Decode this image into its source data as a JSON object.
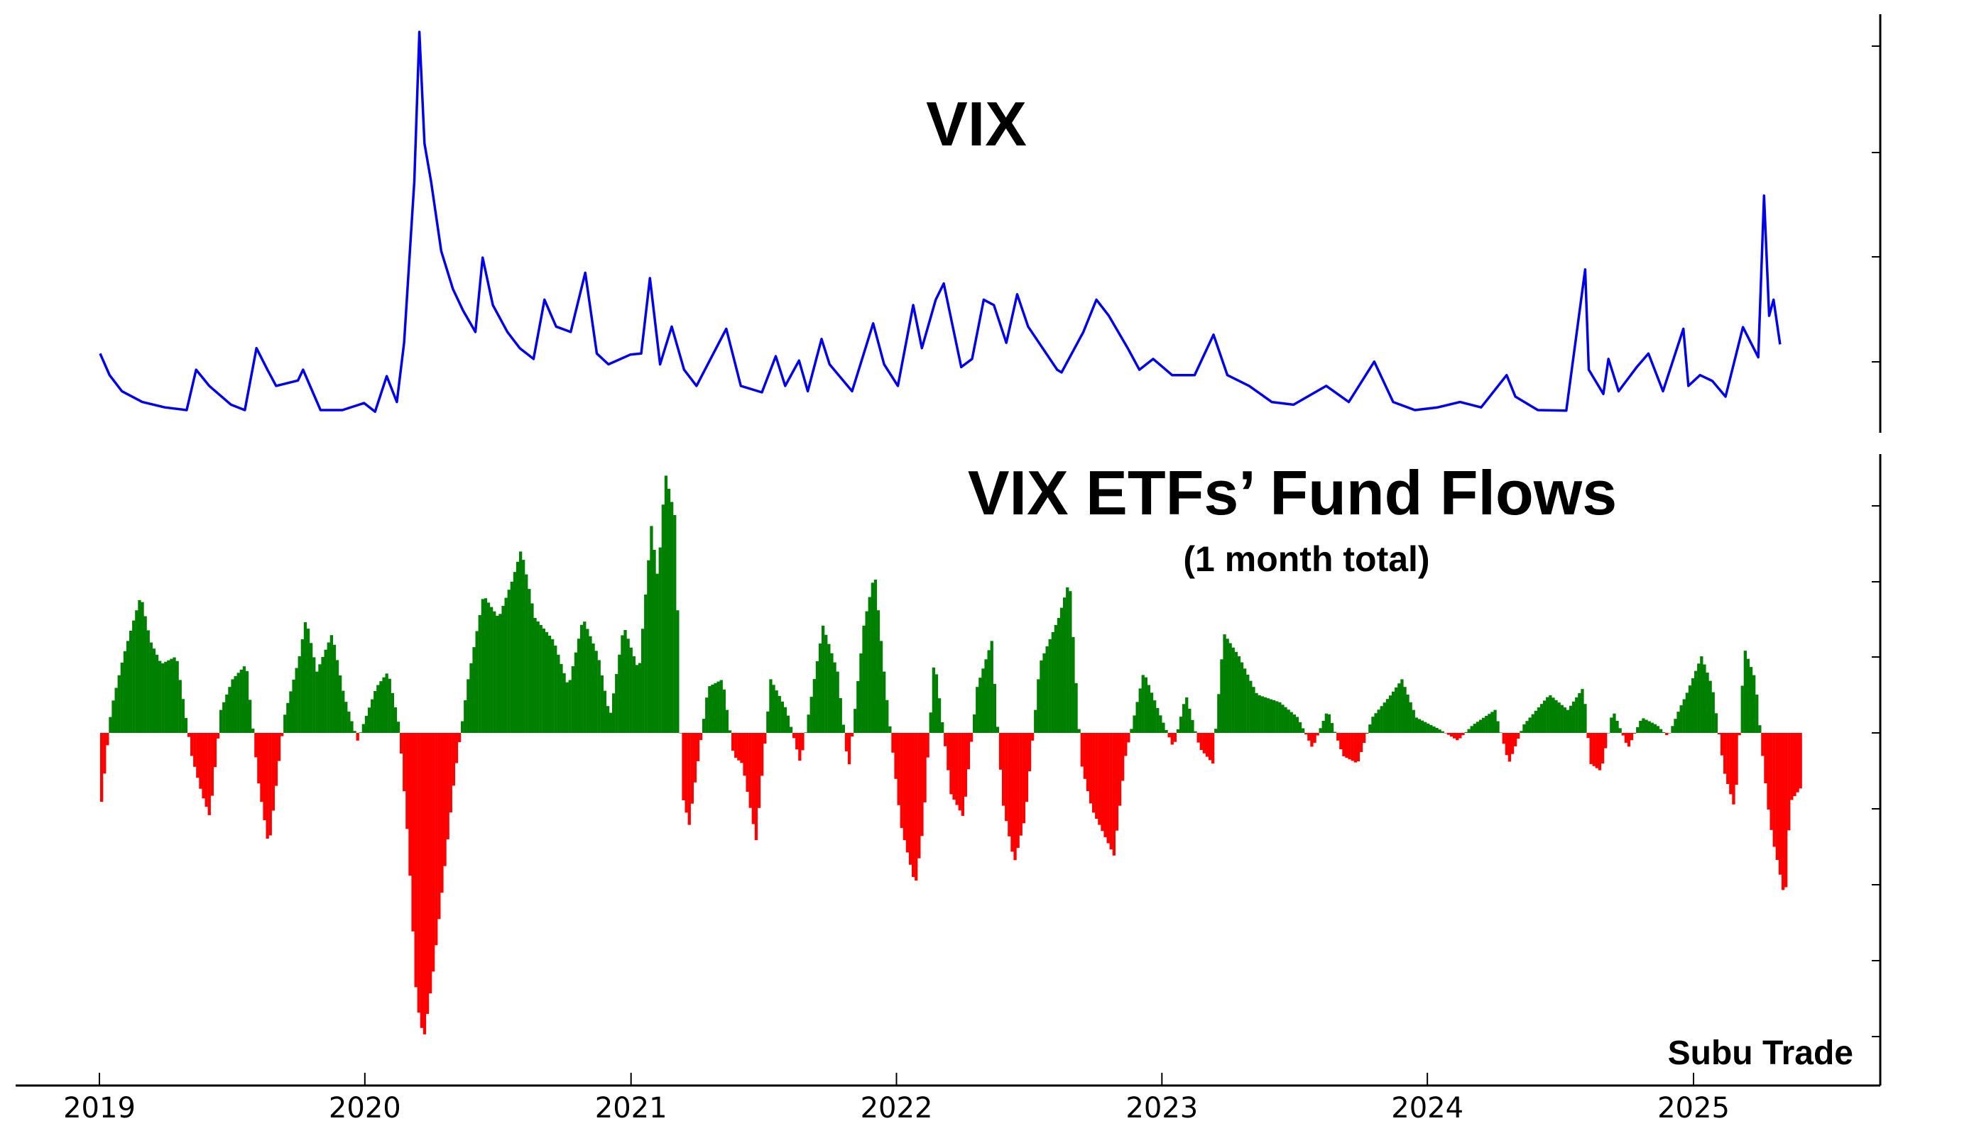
{
  "chart_data": [
    {
      "type": "line",
      "title": "VIX",
      "xlabel": "",
      "ylabel": "",
      "x_ticks": [
        "2019",
        "2020",
        "2021",
        "2022",
        "2023",
        "2024",
        "2025"
      ],
      "x_range": [
        "2019-01-01",
        "2025-05-31"
      ],
      "y_tick_labels_shown": false,
      "color": "#0000ee",
      "series": [
        {
          "points": [
            [
              "2019-01-02",
              23
            ],
            [
              "2019-01-15",
              19
            ],
            [
              "2019-02-01",
              16
            ],
            [
              "2019-03-01",
              14
            ],
            [
              "2019-04-01",
              13
            ],
            [
              "2019-05-01",
              12.5
            ],
            [
              "2019-05-14",
              20
            ],
            [
              "2019-06-01",
              17
            ],
            [
              "2019-07-01",
              13.5
            ],
            [
              "2019-07-20",
              12.5
            ],
            [
              "2019-08-05",
              24
            ],
            [
              "2019-08-20",
              20
            ],
            [
              "2019-09-01",
              17
            ],
            [
              "2019-10-01",
              18
            ],
            [
              "2019-10-08",
              20
            ],
            [
              "2019-11-01",
              12.5
            ],
            [
              "2019-12-01",
              12.5
            ],
            [
              "2019-12-31",
              13.8
            ],
            [
              "2020-01-15",
              12.2
            ],
            [
              "2020-01-31",
              18.8
            ],
            [
              "2020-02-14",
              14
            ],
            [
              "2020-02-24",
              25
            ],
            [
              "2020-03-02",
              40
            ],
            [
              "2020-03-09",
              55
            ],
            [
              "2020-03-16",
              82.7
            ],
            [
              "2020-03-23",
              62
            ],
            [
              "2020-04-01",
              55
            ],
            [
              "2020-04-15",
              42
            ],
            [
              "2020-05-01",
              35
            ],
            [
              "2020-05-15",
              31
            ],
            [
              "2020-06-01",
              27
            ],
            [
              "2020-06-11",
              40.8
            ],
            [
              "2020-06-25",
              32
            ],
            [
              "2020-07-15",
              27
            ],
            [
              "2020-08-01",
              24
            ],
            [
              "2020-08-20",
              22
            ],
            [
              "2020-09-04",
              33
            ],
            [
              "2020-09-20",
              28
            ],
            [
              "2020-10-10",
              27
            ],
            [
              "2020-10-30",
              38
            ],
            [
              "2020-11-15",
              23
            ],
            [
              "2020-12-01",
              21
            ],
            [
              "2020-12-31",
              22.8
            ],
            [
              "2021-01-15",
              23
            ],
            [
              "2021-01-27",
              37
            ],
            [
              "2021-02-10",
              21
            ],
            [
              "2021-02-26",
              28
            ],
            [
              "2021-03-15",
              20
            ],
            [
              "2021-04-01",
              17
            ],
            [
              "2021-05-12",
              27.6
            ],
            [
              "2021-06-01",
              17
            ],
            [
              "2021-06-30",
              15.8
            ],
            [
              "2021-07-19",
              22.5
            ],
            [
              "2021-08-01",
              17
            ],
            [
              "2021-08-20",
              21.7
            ],
            [
              "2021-09-01",
              16
            ],
            [
              "2021-09-20",
              25.7
            ],
            [
              "2021-10-01",
              21
            ],
            [
              "2021-11-01",
              16
            ],
            [
              "2021-11-30",
              28.6
            ],
            [
              "2021-12-15",
              21
            ],
            [
              "2022-01-03",
              17
            ],
            [
              "2022-01-24",
              32
            ],
            [
              "2022-02-05",
              24
            ],
            [
              "2022-02-24",
              33
            ],
            [
              "2022-03-07",
              36
            ],
            [
              "2022-03-31",
              20.5
            ],
            [
              "2022-04-15",
              22
            ],
            [
              "2022-05-01",
              33
            ],
            [
              "2022-05-15",
              32
            ],
            [
              "2022-06-01",
              25
            ],
            [
              "2022-06-16",
              34
            ],
            [
              "2022-07-01",
              28
            ],
            [
              "2022-08-10",
              20
            ],
            [
              "2022-08-16",
              19.5
            ],
            [
              "2022-09-15",
              27
            ],
            [
              "2022-10-03",
              33
            ],
            [
              "2022-10-20",
              30
            ],
            [
              "2022-11-15",
              24
            ],
            [
              "2022-12-01",
              20
            ],
            [
              "2022-12-20",
              22
            ],
            [
              "2023-01-15",
              19
            ],
            [
              "2023-02-15",
              19
            ],
            [
              "2023-03-13",
              26.5
            ],
            [
              "2023-04-01",
              19
            ],
            [
              "2023-05-01",
              17
            ],
            [
              "2023-06-01",
              14
            ],
            [
              "2023-07-01",
              13.5
            ],
            [
              "2023-08-15",
              17
            ],
            [
              "2023-09-15",
              14
            ],
            [
              "2023-10-20",
              21.5
            ],
            [
              "2023-11-15",
              14
            ],
            [
              "2023-12-15",
              12.5
            ],
            [
              "2024-01-15",
              13
            ],
            [
              "2024-02-15",
              14
            ],
            [
              "2024-03-15",
              13
            ],
            [
              "2024-04-19",
              19
            ],
            [
              "2024-05-01",
              15
            ],
            [
              "2024-06-01",
              12.5
            ],
            [
              "2024-07-10",
              12.4
            ],
            [
              "2024-08-05",
              38.6
            ],
            [
              "2024-08-10",
              20
            ],
            [
              "2024-08-30",
              15.5
            ],
            [
              "2024-09-06",
              22
            ],
            [
              "2024-09-20",
              16
            ],
            [
              "2024-10-15",
              20.5
            ],
            [
              "2024-10-31",
              23
            ],
            [
              "2024-11-20",
              16
            ],
            [
              "2024-12-18",
              27.6
            ],
            [
              "2024-12-25",
              17
            ],
            [
              "2025-01-10",
              19
            ],
            [
              "2025-01-27",
              17.9
            ],
            [
              "2025-02-14",
              15
            ],
            [
              "2025-03-10",
              27.9
            ],
            [
              "2025-03-31",
              22.3
            ],
            [
              "2025-04-08",
              52.3
            ],
            [
              "2025-04-15",
              30
            ],
            [
              "2025-04-21",
              33
            ],
            [
              "2025-04-30",
              24.7
            ]
          ]
        }
      ]
    },
    {
      "type": "bar",
      "title": "VIX ETFs’ Fund Flows",
      "subtitle": "(1 month total)",
      "xlabel": "",
      "ylabel": "",
      "x_ticks": [
        "2019",
        "2020",
        "2021",
        "2022",
        "2023",
        "2024",
        "2025"
      ],
      "x_range": [
        "2019-01-01",
        "2025-05-31"
      ],
      "y_tick_labels_shown": false,
      "positive_color": "#008000",
      "negative_color": "#ff0000",
      "series": [
        {
          "points": [
            [
              "2019-01-02",
              -0.9
            ],
            [
              "2019-01-15",
              0.3
            ],
            [
              "2019-02-01",
              1.0
            ],
            [
              "2019-02-25",
              1.8
            ],
            [
              "2019-03-10",
              1.2
            ],
            [
              "2019-03-25",
              0.9
            ],
            [
              "2019-04-15",
              1.0
            ],
            [
              "2019-05-06",
              -0.3
            ],
            [
              "2019-05-20",
              -0.8
            ],
            [
              "2019-05-31",
              -1.1
            ],
            [
              "2019-06-15",
              0.3
            ],
            [
              "2019-07-01",
              0.7
            ],
            [
              "2019-07-20",
              0.9
            ],
            [
              "2019-08-05",
              -0.6
            ],
            [
              "2019-08-20",
              -1.5
            ],
            [
              "2019-09-10",
              0.2
            ],
            [
              "2019-10-01",
              1.0
            ],
            [
              "2019-10-10",
              1.5
            ],
            [
              "2019-10-25",
              0.8
            ],
            [
              "2019-11-15",
              1.3
            ],
            [
              "2019-12-01",
              0.5
            ],
            [
              "2019-12-20",
              -0.1
            ],
            [
              "2020-01-15",
              0.6
            ],
            [
              "2020-01-31",
              0.8
            ],
            [
              "2020-02-15",
              0.1
            ],
            [
              "2020-02-28",
              -1.5
            ],
            [
              "2020-03-10",
              -3.5
            ],
            [
              "2020-03-20",
              -4.0
            ],
            [
              "2020-04-01",
              -3.2
            ],
            [
              "2020-04-15",
              -2.0
            ],
            [
              "2020-05-01",
              -0.6
            ],
            [
              "2020-05-20",
              0.7
            ],
            [
              "2020-06-10",
              1.8
            ],
            [
              "2020-07-01",
              1.5
            ],
            [
              "2020-07-20",
              2.0
            ],
            [
              "2020-08-01",
              2.4
            ],
            [
              "2020-08-20",
              1.5
            ],
            [
              "2020-09-15",
              1.2
            ],
            [
              "2020-10-05",
              0.6
            ],
            [
              "2020-10-25",
              1.5
            ],
            [
              "2020-11-15",
              1.0
            ],
            [
              "2020-12-01",
              0.2
            ],
            [
              "2020-12-20",
              1.4
            ],
            [
              "2021-01-10",
              0.8
            ],
            [
              "2021-01-27",
              2.7
            ],
            [
              "2021-02-05",
              2.0
            ],
            [
              "2021-02-15",
              3.4
            ],
            [
              "2021-03-01",
              2.8
            ],
            [
              "2021-03-10",
              -0.8
            ],
            [
              "2021-03-20",
              -1.2
            ],
            [
              "2021-04-15",
              0.6
            ],
            [
              "2021-05-05",
              0.7
            ],
            [
              "2021-05-20",
              -0.3
            ],
            [
              "2021-06-01",
              -0.4
            ],
            [
              "2021-06-20",
              -1.4
            ],
            [
              "2021-07-10",
              0.7
            ],
            [
              "2021-08-01",
              0.3
            ],
            [
              "2021-08-20",
              -0.4
            ],
            [
              "2021-09-20",
              1.4
            ],
            [
              "2021-10-10",
              0.8
            ],
            [
              "2021-10-25",
              -0.5
            ],
            [
              "2021-11-15",
              1.4
            ],
            [
              "2021-11-30",
              2.1
            ],
            [
              "2021-12-15",
              0.6
            ],
            [
              "2022-01-05",
              -1.2
            ],
            [
              "2022-01-25",
              -2.0
            ],
            [
              "2022-02-05",
              -1.2
            ],
            [
              "2022-02-20",
              1.0
            ],
            [
              "2022-03-15",
              -0.8
            ],
            [
              "2022-04-01",
              -1.1
            ],
            [
              "2022-04-20",
              0.6
            ],
            [
              "2022-05-10",
              1.2
            ],
            [
              "2022-05-25",
              -0.9
            ],
            [
              "2022-06-10",
              -1.7
            ],
            [
              "2022-06-25",
              -1.1
            ],
            [
              "2022-07-15",
              0.9
            ],
            [
              "2022-08-10",
              1.5
            ],
            [
              "2022-08-25",
              2.0
            ],
            [
              "2022-09-10",
              -0.4
            ],
            [
              "2022-09-25",
              -1.0
            ],
            [
              "2022-10-10",
              -1.3
            ],
            [
              "2022-10-25",
              -1.6
            ],
            [
              "2022-11-10",
              -0.3
            ],
            [
              "2022-12-05",
              0.8
            ],
            [
              "2022-12-25",
              0.3
            ],
            [
              "2023-01-15",
              -0.2
            ],
            [
              "2023-02-01",
              0.5
            ],
            [
              "2023-02-20",
              -0.2
            ],
            [
              "2023-03-10",
              -0.4
            ],
            [
              "2023-03-25",
              1.3
            ],
            [
              "2023-04-15",
              1.0
            ],
            [
              "2023-05-10",
              0.5
            ],
            [
              "2023-06-10",
              0.4
            ],
            [
              "2023-07-05",
              0.2
            ],
            [
              "2023-07-25",
              -0.2
            ],
            [
              "2023-08-15",
              0.3
            ],
            [
              "2023-09-05",
              -0.3
            ],
            [
              "2023-09-25",
              -0.4
            ],
            [
              "2023-10-15",
              0.2
            ],
            [
              "2023-11-10",
              0.5
            ],
            [
              "2023-11-25",
              0.7
            ],
            [
              "2023-12-15",
              0.2
            ],
            [
              "2024-01-15",
              0.05
            ],
            [
              "2024-02-10",
              -0.1
            ],
            [
              "2024-03-01",
              0.1
            ],
            [
              "2024-04-01",
              0.3
            ],
            [
              "2024-04-20",
              -0.4
            ],
            [
              "2024-05-10",
              0.1
            ],
            [
              "2024-06-15",
              0.5
            ],
            [
              "2024-07-10",
              0.3
            ],
            [
              "2024-08-01",
              0.6
            ],
            [
              "2024-08-10",
              -0.4
            ],
            [
              "2024-08-25",
              -0.5
            ],
            [
              "2024-09-10",
              0.3
            ],
            [
              "2024-10-01",
              -0.2
            ],
            [
              "2024-10-20",
              0.2
            ],
            [
              "2024-11-10",
              0.1
            ],
            [
              "2024-11-25",
              -0.05
            ],
            [
              "2024-12-10",
              0.3
            ],
            [
              "2024-12-20",
              0.5
            ],
            [
              "2025-01-10",
              1.0
            ],
            [
              "2025-01-25",
              0.6
            ],
            [
              "2025-02-10",
              -0.5
            ],
            [
              "2025-02-25",
              -1.0
            ],
            [
              "2025-03-10",
              1.1
            ],
            [
              "2025-03-25",
              0.7
            ],
            [
              "2025-04-05",
              -0.4
            ],
            [
              "2025-04-12",
              -1.0
            ],
            [
              "2025-04-18",
              -1.4
            ],
            [
              "2025-04-25",
              -1.7
            ],
            [
              "2025-05-05",
              -2.2
            ],
            [
              "2025-05-12",
              -0.9
            ],
            [
              "2025-05-28",
              -0.7
            ]
          ]
        }
      ]
    }
  ],
  "watermark": "Subu Trade"
}
